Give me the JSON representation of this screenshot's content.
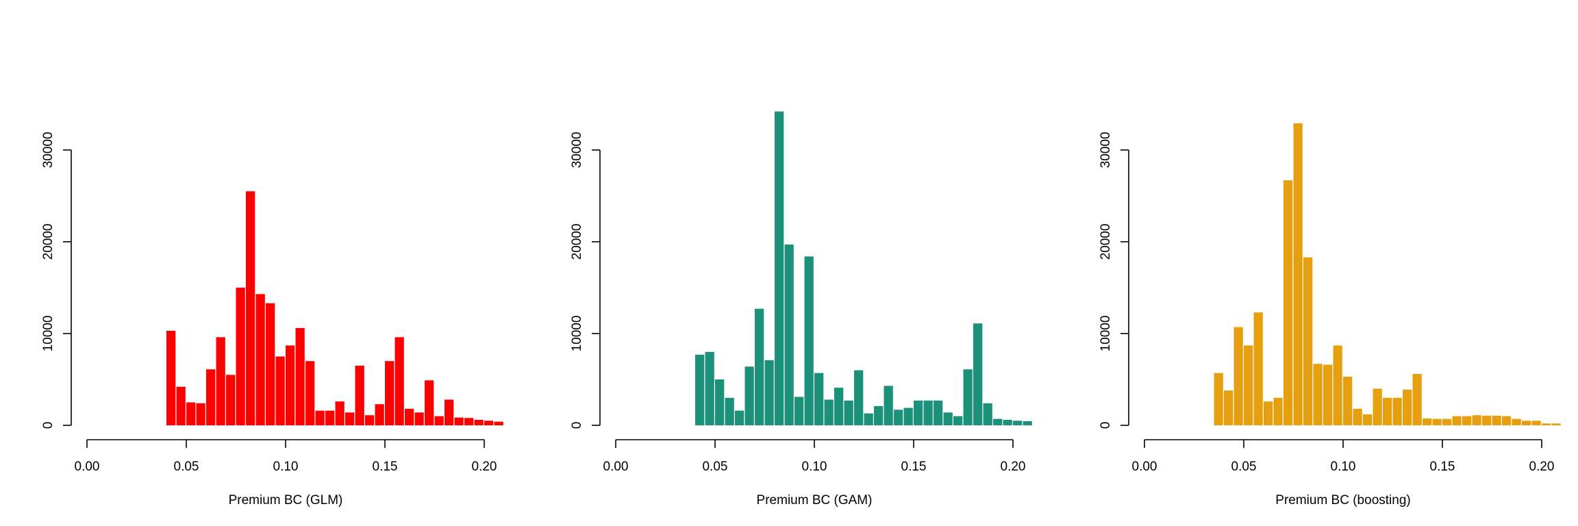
{
  "chart_data": [
    {
      "type": "bar",
      "xlabel": "Premium BC (GLM)",
      "ylabel": "",
      "color": "#ff0000",
      "xlim": [
        0,
        0.21
      ],
      "ylim": [
        0,
        34000
      ],
      "xticks": [
        0.0,
        0.05,
        0.1,
        0.15,
        0.2
      ],
      "xtick_labels": [
        "0.00",
        "0.05",
        "0.10",
        "0.15",
        "0.20"
      ],
      "yticks": [
        0,
        10000,
        20000,
        30000
      ],
      "ytick_labels": [
        "0",
        "10000",
        "20000",
        "30000"
      ],
      "grid": false,
      "bin_start": 0.04,
      "bin_width": 0.005,
      "values": [
        10300,
        4200,
        2500,
        2400,
        6100,
        9600,
        5500,
        15000,
        25500,
        14300,
        13300,
        7500,
        8700,
        10600,
        7000,
        1600,
        1600,
        2600,
        1400,
        6500,
        1100,
        2300,
        7000,
        9600,
        1800,
        1400,
        4900,
        1000,
        2800,
        850,
        800,
        600,
        500,
        400
      ]
    },
    {
      "type": "bar",
      "xlabel": "Premium BC (GAM)",
      "ylabel": "",
      "color": "#1a9178",
      "xlim": [
        0,
        0.21
      ],
      "ylim": [
        0,
        34000
      ],
      "xticks": [
        0.0,
        0.05,
        0.1,
        0.15,
        0.2
      ],
      "xtick_labels": [
        "0.00",
        "0.05",
        "0.10",
        "0.15",
        "0.20"
      ],
      "yticks": [
        0,
        10000,
        20000,
        30000
      ],
      "ytick_labels": [
        "0",
        "10000",
        "20000",
        "30000"
      ],
      "grid": false,
      "bin_start": 0.04,
      "bin_width": 0.005,
      "values": [
        7700,
        8000,
        5000,
        3000,
        1600,
        6400,
        12700,
        7100,
        34200,
        19700,
        3100,
        18400,
        5700,
        2800,
        4100,
        2700,
        6000,
        1300,
        2100,
        4300,
        1700,
        1900,
        2700,
        2700,
        2700,
        1400,
        1000,
        6100,
        11100,
        2400,
        700,
        600,
        500,
        450
      ]
    },
    {
      "type": "bar",
      "xlabel": "Premium BC (boosting)",
      "ylabel": "",
      "color": "#e69f0f",
      "xlim": [
        0,
        0.21
      ],
      "ylim": [
        0,
        34000
      ],
      "xticks": [
        0.0,
        0.05,
        0.1,
        0.15,
        0.2
      ],
      "xtick_labels": [
        "0.00",
        "0.05",
        "0.10",
        "0.15",
        "0.20"
      ],
      "yticks": [
        0,
        10000,
        20000,
        30000
      ],
      "ytick_labels": [
        "0",
        "10000",
        "20000",
        "30000"
      ],
      "grid": false,
      "bin_start": 0.035,
      "bin_width": 0.005,
      "values": [
        5700,
        3800,
        10700,
        8700,
        12300,
        2600,
        3000,
        26700,
        32900,
        18300,
        6700,
        6600,
        8700,
        5300,
        1800,
        1200,
        4000,
        3000,
        3000,
        3900,
        5600,
        750,
        700,
        700,
        1000,
        1000,
        1100,
        1050,
        1050,
        1000,
        700,
        500,
        500,
        200,
        200
      ]
    }
  ]
}
